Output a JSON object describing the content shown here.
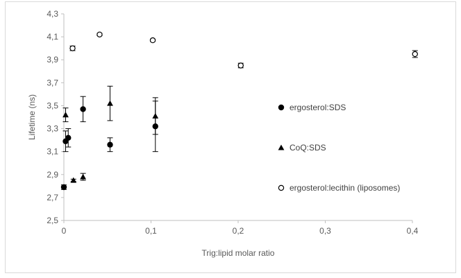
{
  "chart_data": {
    "type": "scatter",
    "title": "",
    "xlabel": "Trig:lipid molar ratio",
    "ylabel": "Lifetime (ns)",
    "xlim": [
      0,
      0.4
    ],
    "ylim": [
      2.5,
      4.3
    ],
    "x_ticks": [
      {
        "value": 0,
        "label": "0"
      },
      {
        "value": 0.1,
        "label": "0,1"
      },
      {
        "value": 0.2,
        "label": "0,2"
      },
      {
        "value": 0.3,
        "label": "0,3"
      },
      {
        "value": 0.4,
        "label": "0,4"
      }
    ],
    "y_ticks": [
      {
        "value": 2.5,
        "label": "2,5"
      },
      {
        "value": 2.7,
        "label": "2,7"
      },
      {
        "value": 2.9,
        "label": "2,9"
      },
      {
        "value": 3.1,
        "label": "3,1"
      },
      {
        "value": 3.3,
        "label": "3,3"
      },
      {
        "value": 3.5,
        "label": "3,5"
      },
      {
        "value": 3.7,
        "label": "3,7"
      },
      {
        "value": 3.9,
        "label": "3,9"
      },
      {
        "value": 4.1,
        "label": "4,1"
      },
      {
        "value": 4.3,
        "label": "4,3"
      }
    ],
    "grid": false,
    "legend_position": "right",
    "series": [
      {
        "name": "ergosterol:SDS",
        "marker": "filled-circle",
        "color": "#000000",
        "points": [
          {
            "x": 0.0,
            "y": 2.79,
            "err": 0.02
          },
          {
            "x": 0.002,
            "y": 3.19,
            "err": 0.09
          },
          {
            "x": 0.005,
            "y": 3.22,
            "err": 0.08
          },
          {
            "x": 0.022,
            "y": 3.47,
            "err": 0.11
          },
          {
            "x": 0.053,
            "y": 3.16,
            "err": 0.06
          },
          {
            "x": 0.105,
            "y": 3.32,
            "err": 0.22
          }
        ]
      },
      {
        "name": "CoQ:SDS",
        "marker": "filled-triangle",
        "color": "#000000",
        "points": [
          {
            "x": 0.002,
            "y": 3.42,
            "err": 0.06
          },
          {
            "x": 0.011,
            "y": 2.85,
            "err": 0.01
          },
          {
            "x": 0.022,
            "y": 2.88,
            "err": 0.03
          },
          {
            "x": 0.053,
            "y": 3.52,
            "err": 0.15
          },
          {
            "x": 0.105,
            "y": 3.41,
            "err": 0.16
          }
        ]
      },
      {
        "name": "ergosterol:lecithin (liposomes)",
        "marker": "open-circle",
        "color": "#000000",
        "points": [
          {
            "x": 0.01,
            "y": 4.0,
            "err": 0.02
          },
          {
            "x": 0.041,
            "y": 4.12,
            "err": 0.01
          },
          {
            "x": 0.102,
            "y": 4.07,
            "err": 0.01
          },
          {
            "x": 0.203,
            "y": 3.85,
            "err": 0.02
          },
          {
            "x": 0.403,
            "y": 3.95,
            "err": 0.03
          }
        ]
      }
    ]
  }
}
